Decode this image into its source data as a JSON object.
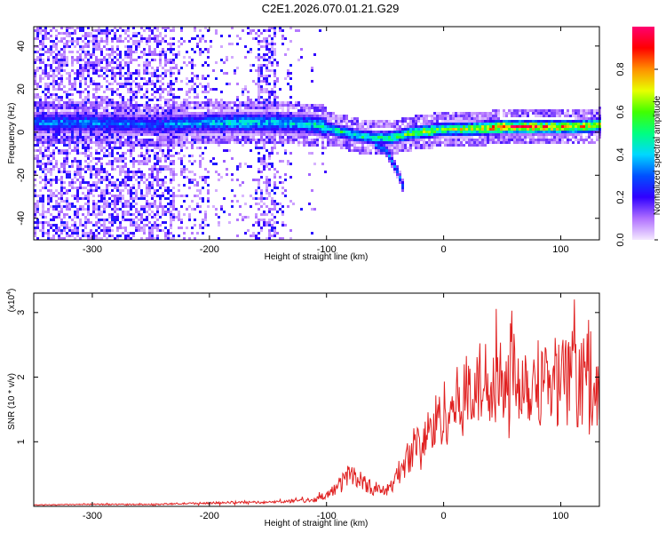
{
  "figure_title": "C2E1.2026.070.01.21.G29",
  "chart_data": [
    {
      "type": "heatmap",
      "title": "C2E1.2026.070.01.21.G29",
      "xlabel": "Height of straight line (km)",
      "ylabel": "Frequency (Hz)",
      "xlim": [
        -350,
        133
      ],
      "ylim": [
        -50,
        49
      ],
      "xticks": [
        -300,
        -200,
        -100,
        0,
        100
      ],
      "xtick_labels": [
        "-300",
        "-200",
        "-100",
        "0",
        "100"
      ],
      "yticks": [
        -40,
        -20,
        0,
        20,
        40
      ],
      "ytick_labels": [
        "-40",
        "-20",
        "0",
        "20",
        "40"
      ],
      "colorbar": {
        "label": "Normalized spectral amplitude",
        "range": [
          0,
          1
        ],
        "ticks": [
          0.0,
          0.2,
          0.4,
          0.6,
          0.8
        ],
        "tick_labels": [
          "0.0",
          "0.2",
          "0.4",
          "0.6",
          "0.8"
        ],
        "colors": [
          "#f2e4ff",
          "#b070ff",
          "#4800ff",
          "#0000ff",
          "#00c8ff",
          "#00ff60",
          "#ffff00",
          "#ff8000",
          "#ff0000",
          "#ff0090"
        ]
      },
      "ridge": {
        "x": [
          -300,
          -250,
          -200,
          -170,
          -140,
          -110,
          -90,
          -75,
          -60,
          -45,
          -30,
          -15,
          0,
          20,
          50,
          80,
          110,
          133
        ],
        "freq": [
          5,
          4,
          5,
          5,
          5,
          4,
          1,
          -1,
          -2,
          -2,
          0,
          1,
          2,
          2,
          3,
          3,
          3,
          4
        ],
        "amplitude": [
          0.35,
          0.3,
          0.4,
          0.45,
          0.4,
          0.45,
          0.5,
          0.5,
          0.5,
          0.55,
          0.6,
          0.75,
          0.6,
          0.7,
          0.9,
          0.85,
          0.8,
          0.7
        ]
      },
      "branch": {
        "x": [
          -60,
          -50,
          -45,
          -40,
          -35
        ],
        "freq": [
          -5,
          -8,
          -13,
          -18,
          -26
        ]
      }
    },
    {
      "type": "line",
      "title": "",
      "xlabel": "Height of straight line (km)",
      "ylabel": "SNR (10 * v/v)",
      "y_exponent_label": "(x10",
      "y_exponent_sup": "4",
      "y_exponent_close": ")",
      "xlim": [
        -350,
        133
      ],
      "ylim": [
        0,
        3.3
      ],
      "xticks": [
        -300,
        -200,
        -100,
        0,
        100
      ],
      "xtick_labels": [
        "-300",
        "-200",
        "-100",
        "0",
        "100"
      ],
      "yticks": [
        1,
        2,
        3
      ],
      "ytick_labels": [
        "1",
        "2",
        "3"
      ],
      "color": "#e02020",
      "series": [
        {
          "name": "SNR",
          "x": [
            -350,
            -300,
            -250,
            -200,
            -180,
            -150,
            -130,
            -110,
            -100,
            -90,
            -80,
            -70,
            -60,
            -50,
            -45,
            -40,
            -35,
            -30,
            -25,
            -20,
            -15,
            -10,
            -5,
            0,
            10,
            20,
            30,
            40,
            50,
            60,
            70,
            80,
            90,
            100,
            110,
            120,
            125,
            130,
            133
          ],
          "y": [
            0.02,
            0.03,
            0.03,
            0.05,
            0.06,
            0.06,
            0.08,
            0.1,
            0.16,
            0.3,
            0.5,
            0.38,
            0.26,
            0.22,
            0.3,
            0.45,
            0.6,
            0.75,
            0.9,
            0.95,
            1.05,
            1.15,
            1.3,
            1.4,
            1.5,
            1.7,
            1.8,
            1.9,
            2.05,
            2.0,
            1.9,
            1.85,
            1.95,
            1.9,
            1.8,
            1.9,
            2.1,
            1.7,
            1.6
          ]
        }
      ]
    }
  ]
}
